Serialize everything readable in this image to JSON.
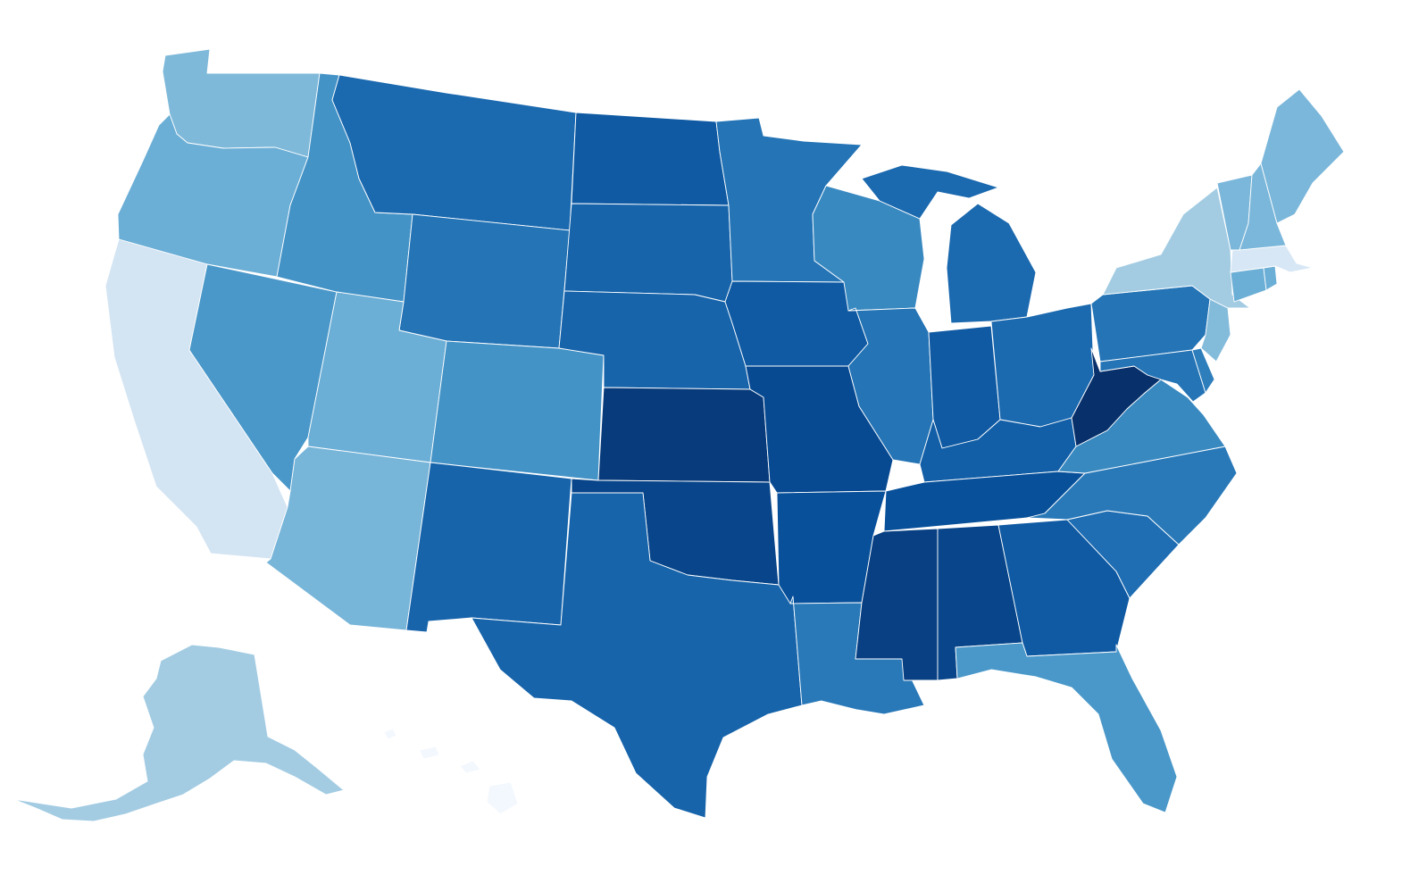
{
  "map": {
    "type": "choropleth",
    "region": "United States",
    "color_scale": [
      "#f7fbff",
      "#deebf7",
      "#c6dbef",
      "#9ecae1",
      "#6baed6",
      "#4292c6",
      "#2171b5",
      "#08519c",
      "#08306b"
    ],
    "states": [
      {
        "code": "WA",
        "level": 0.45
      },
      {
        "code": "OR",
        "level": 0.5
      },
      {
        "code": "CA",
        "level": 0.18
      },
      {
        "code": "NV",
        "level": 0.6
      },
      {
        "code": "ID",
        "level": 0.62
      },
      {
        "code": "MT",
        "level": 0.78
      },
      {
        "code": "WY",
        "level": 0.74
      },
      {
        "code": "UT",
        "level": 0.5
      },
      {
        "code": "AZ",
        "level": 0.47
      },
      {
        "code": "CO",
        "level": 0.62
      },
      {
        "code": "NM",
        "level": 0.8
      },
      {
        "code": "ND",
        "level": 0.84
      },
      {
        "code": "SD",
        "level": 0.8
      },
      {
        "code": "NE",
        "level": 0.8
      },
      {
        "code": "KS",
        "level": 0.96
      },
      {
        "code": "OK",
        "level": 0.92
      },
      {
        "code": "TX",
        "level": 0.8
      },
      {
        "code": "MN",
        "level": 0.74
      },
      {
        "code": "IA",
        "level": 0.84
      },
      {
        "code": "MO",
        "level": 0.9
      },
      {
        "code": "AR",
        "level": 0.88
      },
      {
        "code": "LA",
        "level": 0.72
      },
      {
        "code": "WI",
        "level": 0.66
      },
      {
        "code": "IL",
        "level": 0.74
      },
      {
        "code": "MI",
        "level": 0.78
      },
      {
        "code": "IN",
        "level": 0.84
      },
      {
        "code": "OH",
        "level": 0.78
      },
      {
        "code": "KY",
        "level": 0.82
      },
      {
        "code": "TN",
        "level": 0.88
      },
      {
        "code": "MS",
        "level": 0.94
      },
      {
        "code": "AL",
        "level": 0.92
      },
      {
        "code": "GA",
        "level": 0.84
      },
      {
        "code": "FL",
        "level": 0.6
      },
      {
        "code": "SC",
        "level": 0.76
      },
      {
        "code": "NC",
        "level": 0.72
      },
      {
        "code": "VA",
        "level": 0.66
      },
      {
        "code": "WV",
        "level": 1.0
      },
      {
        "code": "PA",
        "level": 0.74
      },
      {
        "code": "NY",
        "level": 0.36
      },
      {
        "code": "NJ",
        "level": 0.44
      },
      {
        "code": "MD",
        "level": 0.74
      },
      {
        "code": "DE",
        "level": 0.7
      },
      {
        "code": "CT",
        "level": 0.5
      },
      {
        "code": "RI",
        "level": 0.5
      },
      {
        "code": "MA",
        "level": 0.16
      },
      {
        "code": "VT",
        "level": 0.46
      },
      {
        "code": "NH",
        "level": 0.46
      },
      {
        "code": "ME",
        "level": 0.46
      },
      {
        "code": "AK",
        "level": 0.36
      },
      {
        "code": "HI",
        "level": 0.02
      }
    ]
  }
}
